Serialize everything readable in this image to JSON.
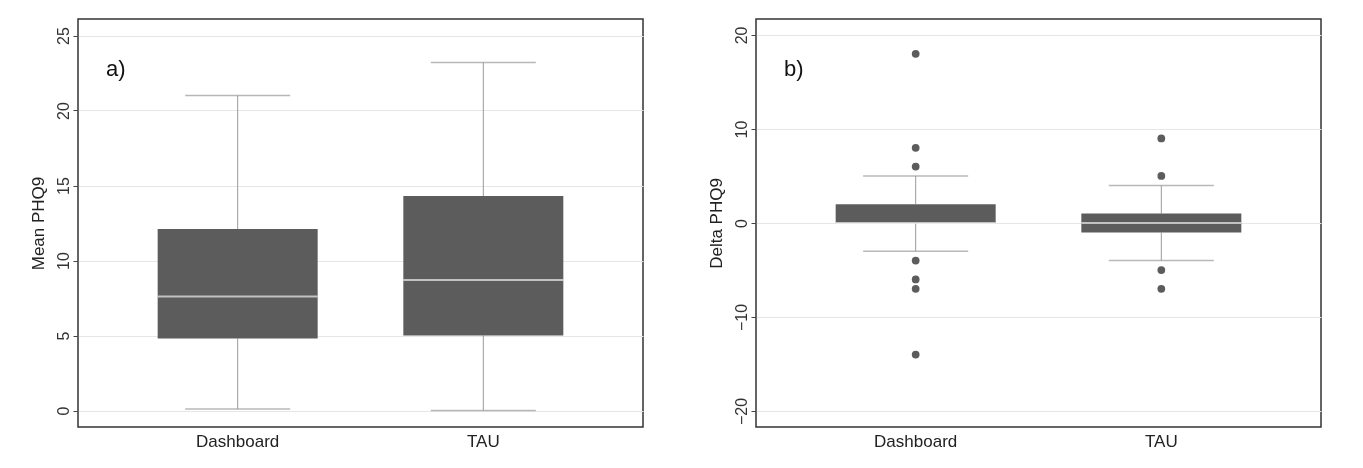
{
  "chart_data": [
    {
      "type": "box",
      "ylabel": "Mean PHQ9",
      "annotations": [
        "a)"
      ],
      "categories": [
        "Dashboard",
        "TAU"
      ],
      "ylim": [
        -1.1,
        26.1
      ],
      "yticks": [
        0,
        5,
        10,
        15,
        20,
        25
      ],
      "grid": "y",
      "boxes": [
        {
          "low": 0.1,
          "q1": 4.8,
          "median": 7.6,
          "q3": 12.1,
          "high": 21
        },
        {
          "low": 0,
          "q1": 5,
          "median": 8.7,
          "q3": 14.3,
          "high": 23.2
        }
      ]
    },
    {
      "type": "box",
      "ylabel": "Delta PHQ9",
      "annotations": [
        "b)"
      ],
      "categories": [
        "Dashboard",
        "TAU"
      ],
      "ylim": [
        -21.7,
        21.7
      ],
      "yticks": [
        -20,
        -10,
        0,
        10,
        20
      ],
      "grid": "y",
      "boxes": [
        {
          "low": -3,
          "q1": 0,
          "median": 0,
          "q3": 2,
          "high": 5,
          "outliers": [
            18,
            8,
            6,
            -4,
            -6,
            -7,
            -14
          ]
        },
        {
          "low": -4,
          "q1": -1,
          "median": 0,
          "q3": 1,
          "high": 4,
          "outliers": [
            9,
            5,
            -5,
            -7
          ]
        }
      ]
    }
  ]
}
